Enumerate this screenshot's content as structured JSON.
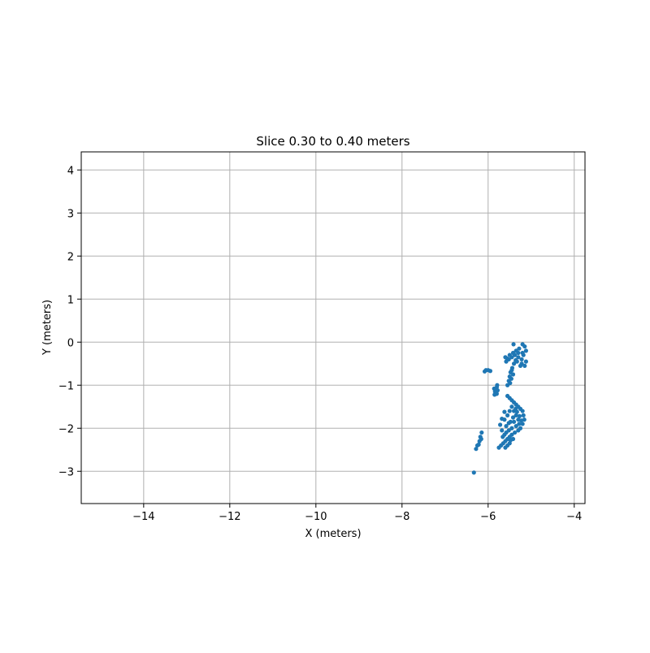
{
  "chart_data": {
    "type": "scatter",
    "title": "Slice 0.30 to 0.40 meters",
    "xlabel": "X (meters)",
    "ylabel": "Y (meters)",
    "xlim": [
      -15.45,
      -3.75
    ],
    "ylim": [
      -3.75,
      4.42
    ],
    "xticks": [
      -14,
      -12,
      -10,
      -8,
      -6,
      -4
    ],
    "yticks": [
      4,
      3,
      2,
      1,
      0,
      -1,
      -2,
      -3
    ],
    "xtick_labels": [
      "−14",
      "−12",
      "−10",
      "−8",
      "−6",
      "−4"
    ],
    "ytick_labels": [
      "4",
      "3",
      "2",
      "1",
      "0",
      "−1",
      "−2",
      "−3"
    ],
    "grid": true,
    "marker_color": "#1f77b4",
    "series": [
      {
        "points": [
          [
            -5.2,
            -0.05
          ],
          [
            -5.15,
            -0.1
          ],
          [
            -5.12,
            -0.2
          ],
          [
            -5.18,
            -0.3
          ],
          [
            -5.22,
            -0.4
          ],
          [
            -5.3,
            -0.35
          ],
          [
            -5.38,
            -0.3
          ],
          [
            -5.45,
            -0.35
          ],
          [
            -5.52,
            -0.4
          ],
          [
            -5.58,
            -0.45
          ],
          [
            -5.6,
            -0.35
          ],
          [
            -5.5,
            -0.3
          ],
          [
            -5.42,
            -0.25
          ],
          [
            -5.35,
            -0.2
          ],
          [
            -5.28,
            -0.15
          ],
          [
            -5.22,
            -0.5
          ],
          [
            -5.15,
            -0.55
          ],
          [
            -5.12,
            -0.45
          ],
          [
            -5.25,
            -0.55
          ],
          [
            -5.33,
            -0.45
          ],
          [
            -5.4,
            -0.5
          ],
          [
            -5.44,
            -0.6
          ],
          [
            -5.48,
            -0.7
          ],
          [
            -5.5,
            -0.8
          ],
          [
            -5.52,
            -0.9
          ],
          [
            -5.55,
            -1.0
          ],
          [
            -5.45,
            -0.65
          ],
          [
            -5.42,
            -0.75
          ],
          [
            -5.46,
            -0.85
          ],
          [
            -5.49,
            -0.95
          ],
          [
            -5.41,
            -0.05
          ],
          [
            -5.36,
            -0.42
          ],
          [
            -5.56,
            -0.38
          ],
          [
            -5.2,
            -0.25
          ],
          [
            -5.3,
            -0.25
          ],
          [
            -6.0,
            -0.65
          ],
          [
            -6.05,
            -0.65
          ],
          [
            -5.95,
            -0.67
          ],
          [
            -6.08,
            -0.68
          ],
          [
            -5.8,
            -1.05
          ],
          [
            -5.82,
            -1.1
          ],
          [
            -5.84,
            -1.15
          ],
          [
            -5.8,
            -1.2
          ],
          [
            -5.85,
            -1.22
          ],
          [
            -5.78,
            -1.12
          ],
          [
            -5.86,
            -1.08
          ],
          [
            -5.79,
            -1.0
          ],
          [
            -5.55,
            -1.25
          ],
          [
            -5.5,
            -1.3
          ],
          [
            -5.45,
            -1.35
          ],
          [
            -5.4,
            -1.4
          ],
          [
            -5.35,
            -1.45
          ],
          [
            -5.3,
            -1.5
          ],
          [
            -5.25,
            -1.55
          ],
          [
            -5.2,
            -1.6
          ],
          [
            -5.18,
            -1.7
          ],
          [
            -5.16,
            -1.8
          ],
          [
            -5.2,
            -1.9
          ],
          [
            -5.25,
            -2.0
          ],
          [
            -5.3,
            -2.05
          ],
          [
            -5.38,
            -2.1
          ],
          [
            -5.45,
            -2.15
          ],
          [
            -5.5,
            -2.2
          ],
          [
            -5.55,
            -2.25
          ],
          [
            -5.6,
            -2.3
          ],
          [
            -5.65,
            -2.35
          ],
          [
            -5.7,
            -2.4
          ],
          [
            -5.75,
            -2.45
          ],
          [
            -5.6,
            -2.45
          ],
          [
            -5.55,
            -2.4
          ],
          [
            -5.5,
            -2.35
          ],
          [
            -5.48,
            -2.28
          ],
          [
            -5.42,
            -2.25
          ],
          [
            -5.58,
            -1.95
          ],
          [
            -5.62,
            -1.8
          ],
          [
            -5.55,
            -1.7
          ],
          [
            -5.5,
            -1.6
          ],
          [
            -5.45,
            -1.5
          ],
          [
            -5.4,
            -1.6
          ],
          [
            -5.35,
            -1.7
          ],
          [
            -5.3,
            -1.8
          ],
          [
            -5.28,
            -1.9
          ],
          [
            -5.35,
            -1.95
          ],
          [
            -5.45,
            -2.0
          ],
          [
            -5.52,
            -2.05
          ],
          [
            -5.58,
            -2.1
          ],
          [
            -5.62,
            -2.15
          ],
          [
            -5.66,
            -2.2
          ],
          [
            -5.4,
            -1.85
          ],
          [
            -5.42,
            -1.75
          ],
          [
            -5.48,
            -1.85
          ],
          [
            -5.52,
            -1.88
          ],
          [
            -5.33,
            -1.62
          ],
          [
            -5.27,
            -1.72
          ],
          [
            -5.23,
            -1.82
          ],
          [
            -5.36,
            -1.55
          ],
          [
            -5.62,
            -1.62
          ],
          [
            -5.68,
            -1.78
          ],
          [
            -5.72,
            -1.92
          ],
          [
            -5.68,
            -2.05
          ],
          [
            -6.15,
            -2.1
          ],
          [
            -6.18,
            -2.2
          ],
          [
            -6.2,
            -2.3
          ],
          [
            -6.25,
            -2.4
          ],
          [
            -6.28,
            -2.48
          ],
          [
            -6.22,
            -2.38
          ],
          [
            -6.16,
            -2.25
          ],
          [
            -6.33,
            -3.03
          ]
        ]
      }
    ]
  }
}
